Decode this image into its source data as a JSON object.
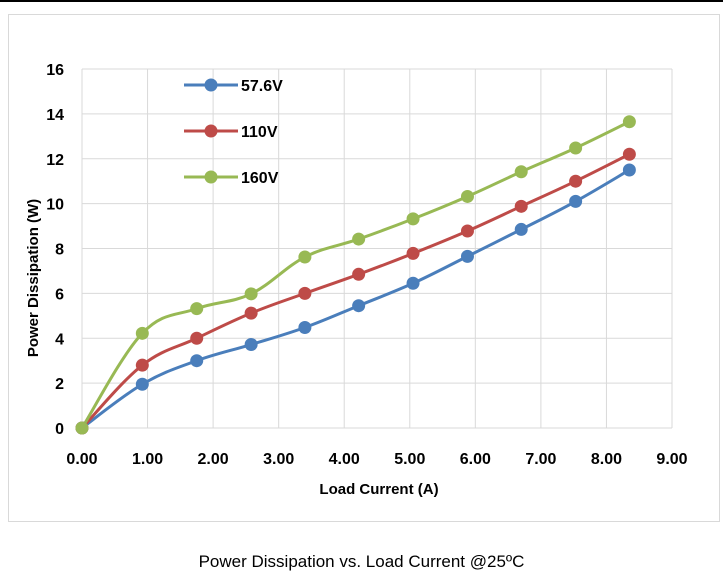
{
  "caption": "Power Dissipation vs. Load Current @25ºC",
  "colors": {
    "series_57_6V": "#4a7ebb",
    "series_110V": "#be4b48",
    "series_160V": "#98b954",
    "grid": "#d9d9d9"
  },
  "chart_data": {
    "type": "line",
    "title": "",
    "xlabel": "Load Current (A)",
    "ylabel": "Power Dissipation (W)",
    "xlim": [
      0,
      9
    ],
    "ylim": [
      0,
      16
    ],
    "xticks": [
      "0.00",
      "1.00",
      "2.00",
      "3.00",
      "4.00",
      "5.00",
      "6.00",
      "7.00",
      "8.00",
      "9.00"
    ],
    "yticks": [
      "0",
      "2",
      "4",
      "6",
      "8",
      "10",
      "12",
      "14",
      "16"
    ],
    "grid": true,
    "legend_position": "top-left",
    "x": [
      0,
      0.92,
      1.75,
      2.58,
      3.4,
      4.22,
      5.05,
      5.88,
      6.7,
      7.53,
      8.35
    ],
    "series": [
      {
        "name": "57.6V",
        "color": "#4a7ebb",
        "values": [
          0,
          1.95,
          3.0,
          3.72,
          4.48,
          5.45,
          6.45,
          7.65,
          8.85,
          10.1,
          11.5
        ]
      },
      {
        "name": "110V",
        "color": "#be4b48",
        "values": [
          0,
          2.8,
          4.0,
          5.12,
          6.0,
          6.85,
          7.78,
          8.78,
          9.88,
          11.0,
          12.2
        ]
      },
      {
        "name": "160V",
        "color": "#98b954",
        "values": [
          0,
          4.22,
          5.32,
          5.98,
          7.62,
          8.42,
          9.32,
          10.32,
          11.42,
          12.48,
          13.65
        ]
      }
    ]
  }
}
